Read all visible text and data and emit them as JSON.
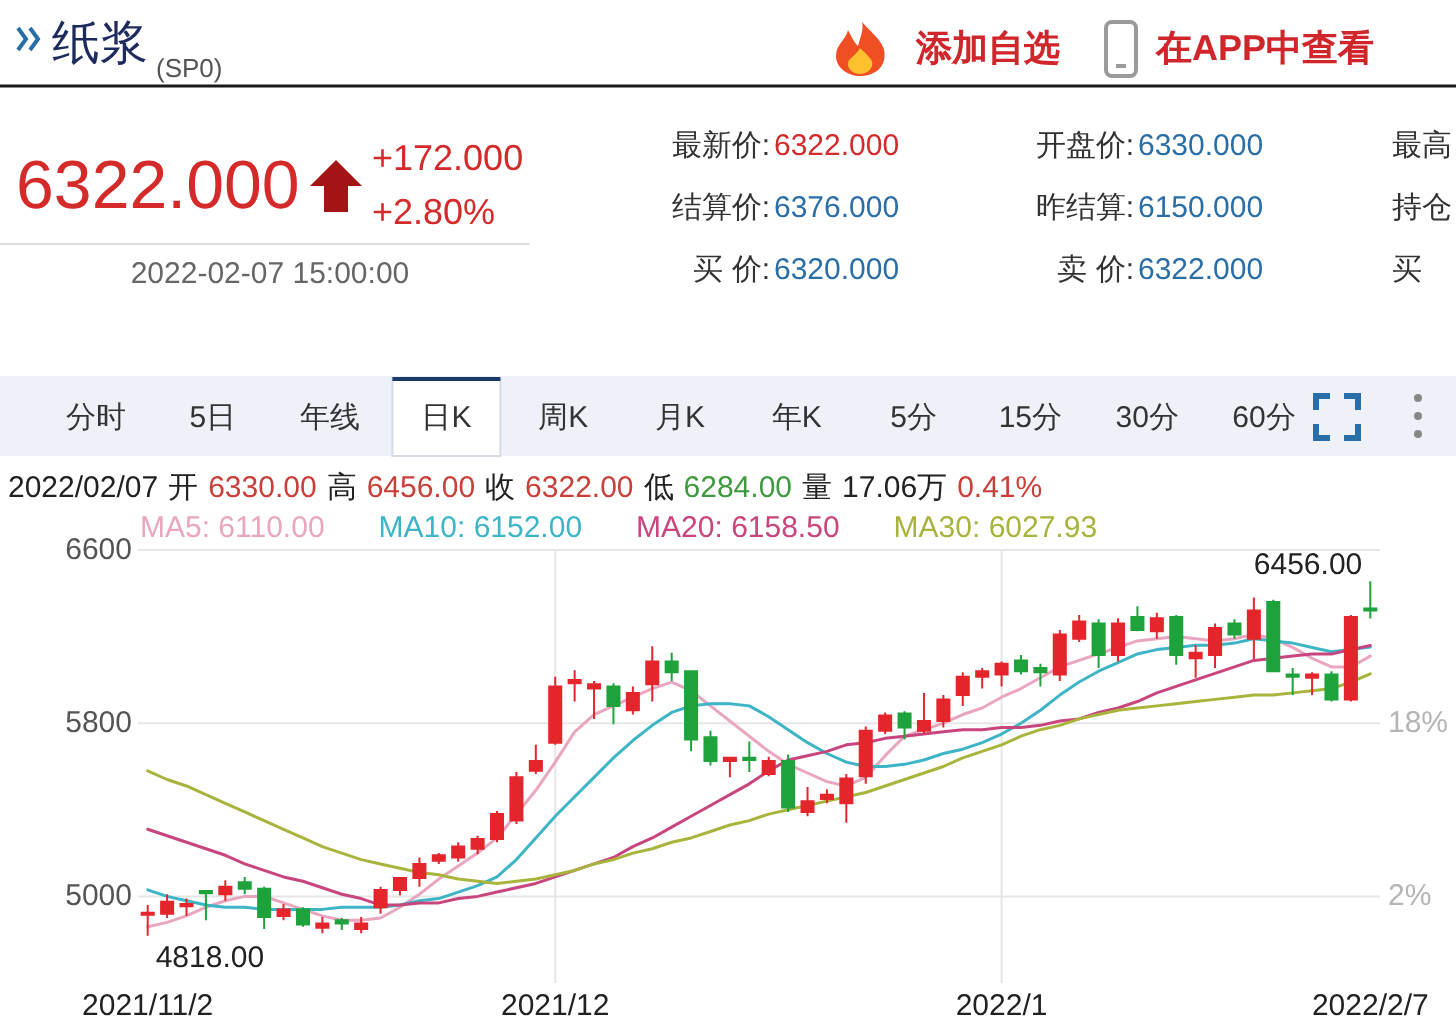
{
  "chart_data": [
    {
      "type": "other",
      "title": "纸浆",
      "subtitle": "(SP0)",
      "annotations": [
        "添加自选",
        "在APP中查看"
      ]
    },
    {
      "type": "other",
      "title": "6322.000",
      "annotations": [
        "+172.000",
        "+2.80%",
        "2022-02-07 15:00:00",
        "最新价:",
        "6322.000",
        "结算价:",
        "6376.000",
        "买 价:",
        "6320.000",
        "开盘价:",
        "6330.000",
        "昨结算:",
        "6150.000",
        "卖 价:",
        "6322.000",
        "最高",
        "持仓",
        "买"
      ]
    },
    {
      "type": "other",
      "annotations": [
        "分时",
        "5日",
        "年线",
        "日K",
        "周K",
        "月K",
        "年K",
        "5分",
        "15分",
        "30分",
        "60分"
      ]
    },
    {
      "type": "candlestick",
      "annotations": [
        "2022/02/07",
        "开",
        "6330.00",
        "高",
        "6456.00",
        "收",
        "6322.00",
        "低",
        "6284.00",
        "量",
        "17.06万",
        "0.41%",
        {
          "text": "6456.00",
          "x": "2022/2/7",
          "y": 6456
        },
        {
          "text": "4818.00",
          "x": "2021/11/2",
          "y": 4818
        }
      ],
      "categories": [
        "2021/11/2",
        null,
        null,
        null,
        null,
        null,
        null,
        null,
        null,
        null,
        null,
        null,
        null,
        null,
        null,
        null,
        null,
        null,
        null,
        null,
        null,
        "2021/12",
        null,
        null,
        null,
        null,
        null,
        null,
        null,
        null,
        null,
        null,
        null,
        null,
        null,
        null,
        null,
        null,
        null,
        null,
        null,
        null,
        null,
        null,
        "2022/1",
        null,
        null,
        null,
        null,
        null,
        null,
        null,
        null,
        null,
        null,
        null,
        null,
        null,
        null,
        null,
        null,
        null,
        null,
        "2022/2/7"
      ],
      "ohlc": [
        [
          4915,
          4960,
          4818,
          4925
        ],
        [
          4920,
          5010,
          4900,
          4975
        ],
        [
          4955,
          4990,
          4910,
          4965
        ],
        [
          5025,
          5030,
          4890,
          5015
        ],
        [
          5010,
          5075,
          4980,
          5045
        ],
        [
          5065,
          5090,
          5010,
          5035
        ],
        [
          5035,
          5045,
          4850,
          4905
        ],
        [
          4910,
          4965,
          4890,
          4940
        ],
        [
          4940,
          4950,
          4860,
          4870
        ],
        [
          4855,
          4905,
          4830,
          4875
        ],
        [
          4890,
          4900,
          4845,
          4875
        ],
        [
          4850,
          4905,
          4830,
          4875
        ],
        [
          4950,
          5045,
          4920,
          5030
        ],
        [
          5030,
          5090,
          5005,
          5085
        ],
        [
          5085,
          5180,
          5045,
          5150
        ],
        [
          5165,
          5200,
          5150,
          5190
        ],
        [
          5180,
          5250,
          5160,
          5230
        ],
        [
          5220,
          5280,
          5195,
          5265
        ],
        [
          5265,
          5395,
          5250,
          5380
        ],
        [
          5350,
          5575,
          5335,
          5550
        ],
        [
          5580,
          5700,
          5565,
          5625
        ],
        [
          5710,
          6015,
          5700,
          5970
        ],
        [
          5985,
          6045,
          5900,
          6000
        ],
        [
          5960,
          5995,
          5820,
          5980
        ],
        [
          5970,
          5985,
          5795,
          5880
        ],
        [
          5860,
          5970,
          5840,
          5940
        ],
        [
          5980,
          6155,
          5900,
          6085
        ],
        [
          6085,
          6125,
          5995,
          6035
        ],
        [
          6040,
          6045,
          5670,
          5725
        ],
        [
          5735,
          5765,
          5605,
          5625
        ],
        [
          5625,
          5645,
          5550,
          5640
        ],
        [
          5640,
          5715,
          5575,
          5630
        ],
        [
          5565,
          5645,
          5555,
          5625
        ],
        [
          5625,
          5655,
          5390,
          5410
        ],
        [
          5390,
          5505,
          5370,
          5440
        ],
        [
          5450,
          5495,
          5430,
          5470
        ],
        [
          5430,
          5565,
          5340,
          5545
        ],
        [
          5555,
          5785,
          5520,
          5765
        ],
        [
          5765,
          5850,
          5750,
          5835
        ],
        [
          5845,
          5855,
          5725,
          5780
        ],
        [
          5765,
          5940,
          5750,
          5810
        ],
        [
          5810,
          5930,
          5780,
          5910
        ],
        [
          5930,
          6035,
          5880,
          6015
        ],
        [
          6015,
          6055,
          5960,
          6040
        ],
        [
          6025,
          6085,
          5970,
          6075
        ],
        [
          6090,
          6115,
          6025,
          6040
        ],
        [
          6055,
          6075,
          5970,
          6035
        ],
        [
          6025,
          6230,
          5995,
          6210
        ],
        [
          6190,
          6300,
          6175,
          6270
        ],
        [
          6260,
          6280,
          6055,
          6115
        ],
        [
          6115,
          6285,
          6085,
          6260
        ],
        [
          6290,
          6340,
          6225,
          6230
        ],
        [
          6225,
          6310,
          6190,
          6285
        ],
        [
          6290,
          6300,
          6070,
          6115
        ],
        [
          6100,
          6160,
          6010,
          6125
        ],
        [
          6115,
          6260,
          6055,
          6240
        ],
        [
          6260,
          6280,
          6190,
          6210
        ],
        [
          6190,
          6380,
          6095,
          6320
        ],
        [
          6360,
          6370,
          6035,
          6040
        ],
        [
          6025,
          6055,
          5930,
          6015
        ],
        [
          6010,
          6035,
          5930,
          6025
        ],
        [
          6025,
          6040,
          5900,
          5910
        ],
        [
          5910,
          6300,
          5900,
          6290
        ],
        [
          6330,
          6456,
          6284,
          6322
        ]
      ],
      "colors": [
        "#e4262c",
        "#e4262c",
        "#e4262c",
        "#1ea33c",
        "#e4262c",
        "#1ea33c",
        "#1ea33c",
        "#e4262c",
        "#1ea33c",
        "#e4262c",
        "#1ea33c",
        "#e4262c",
        "#e4262c",
        "#e4262c",
        "#e4262c",
        "#e4262c",
        "#e4262c",
        "#e4262c",
        "#e4262c",
        "#e4262c",
        "#e4262c",
        "#e4262c",
        "#e4262c",
        "#e4262c",
        "#1ea33c",
        "#e4262c",
        "#e4262c",
        "#1ea33c",
        "#1ea33c",
        "#1ea33c",
        "#e4262c",
        "#1ea33c",
        "#e4262c",
        "#1ea33c",
        "#e4262c",
        "#e4262c",
        "#e4262c",
        "#e4262c",
        "#e4262c",
        "#1ea33c",
        "#e4262c",
        "#e4262c",
        "#e4262c",
        "#e4262c",
        "#e4262c",
        "#1ea33c",
        "#1ea33c",
        "#e4262c",
        "#e4262c",
        "#1ea33c",
        "#e4262c",
        "#1ea33c",
        "#e4262c",
        "#1ea33c",
        "#e4262c",
        "#e4262c",
        "#1ea33c",
        "#e4262c",
        "#1ea33c",
        "#1ea33c",
        "#e4262c",
        "#1ea33c",
        "#e4262c",
        "#1ea33c"
      ],
      "series": [
        {
          "type": "line",
          "name": "MA5: 6110.00",
          "color": "#eaa6c0",
          "values": [
            4860,
            4880,
            4910,
            4950,
            4980,
            5000,
            5000,
            4970,
            4940,
            4910,
            4890,
            4890,
            4900,
            4950,
            5010,
            5080,
            5140,
            5200,
            5270,
            5380,
            5490,
            5620,
            5760,
            5840,
            5880,
            5920,
            5960,
            5990,
            5950,
            5880,
            5810,
            5740,
            5670,
            5610,
            5570,
            5530,
            5510,
            5550,
            5650,
            5740,
            5770,
            5800,
            5840,
            5870,
            5920,
            5960,
            6010,
            6060,
            6090,
            6120,
            6150,
            6180,
            6190,
            6200,
            6190,
            6180,
            6190,
            6210,
            6190,
            6150,
            6100,
            6060,
            6060,
            6110
          ]
        },
        {
          "type": "line",
          "name": "MA10: 6152.00",
          "color": "#3db5c6",
          "values": [
            5030,
            5000,
            4980,
            4960,
            4950,
            4950,
            4940,
            4940,
            4940,
            4940,
            4950,
            4950,
            4950,
            4960,
            4980,
            4990,
            5020,
            5050,
            5090,
            5170,
            5270,
            5370,
            5460,
            5550,
            5640,
            5720,
            5790,
            5850,
            5880,
            5890,
            5890,
            5880,
            5830,
            5770,
            5710,
            5660,
            5620,
            5600,
            5600,
            5610,
            5630,
            5660,
            5680,
            5710,
            5750,
            5800,
            5860,
            5930,
            5990,
            6040,
            6080,
            6120,
            6140,
            6150,
            6160,
            6160,
            6170,
            6190,
            6180,
            6170,
            6150,
            6130,
            6140,
            6152
          ]
        },
        {
          "type": "line",
          "name": "MA20: 6158.50",
          "color": "#c8457e",
          "values": [
            5310,
            5280,
            5250,
            5220,
            5190,
            5150,
            5120,
            5090,
            5070,
            5040,
            5010,
            4990,
            4960,
            4960,
            4970,
            4970,
            4990,
            5000,
            5020,
            5040,
            5060,
            5090,
            5120,
            5150,
            5180,
            5230,
            5270,
            5320,
            5370,
            5420,
            5470,
            5520,
            5580,
            5630,
            5650,
            5670,
            5700,
            5710,
            5730,
            5740,
            5750,
            5760,
            5770,
            5770,
            5780,
            5780,
            5790,
            5810,
            5820,
            5850,
            5870,
            5900,
            5940,
            5970,
            6000,
            6030,
            6060,
            6090,
            6100,
            6110,
            6120,
            6120,
            6140,
            6158.5
          ]
        },
        {
          "type": "line",
          "name": "MA30: 6027.93",
          "color": "#a9b43c",
          "values": [
            5580,
            5540,
            5510,
            5470,
            5430,
            5390,
            5350,
            5310,
            5270,
            5230,
            5200,
            5170,
            5150,
            5130,
            5110,
            5100,
            5080,
            5070,
            5060,
            5070,
            5080,
            5100,
            5120,
            5150,
            5170,
            5200,
            5220,
            5250,
            5270,
            5300,
            5330,
            5350,
            5380,
            5400,
            5420,
            5440,
            5460,
            5480,
            5510,
            5540,
            5570,
            5600,
            5640,
            5670,
            5700,
            5740,
            5770,
            5790,
            5820,
            5840,
            5860,
            5870,
            5880,
            5890,
            5900,
            5910,
            5920,
            5930,
            5930,
            5940,
            5950,
            5960,
            5990,
            6027.93
          ]
        }
      ],
      "ylim": [
        4600,
        6600
      ],
      "yticks": [
        5000,
        5800,
        6600
      ],
      "y2lim": [
        -6,
        34
      ],
      "y2ticks": [
        {
          "value": 2,
          "label": "2%"
        },
        {
          "value": 18,
          "label": "18%"
        }
      ],
      "grid": true,
      "legend": "top"
    }
  ]
}
